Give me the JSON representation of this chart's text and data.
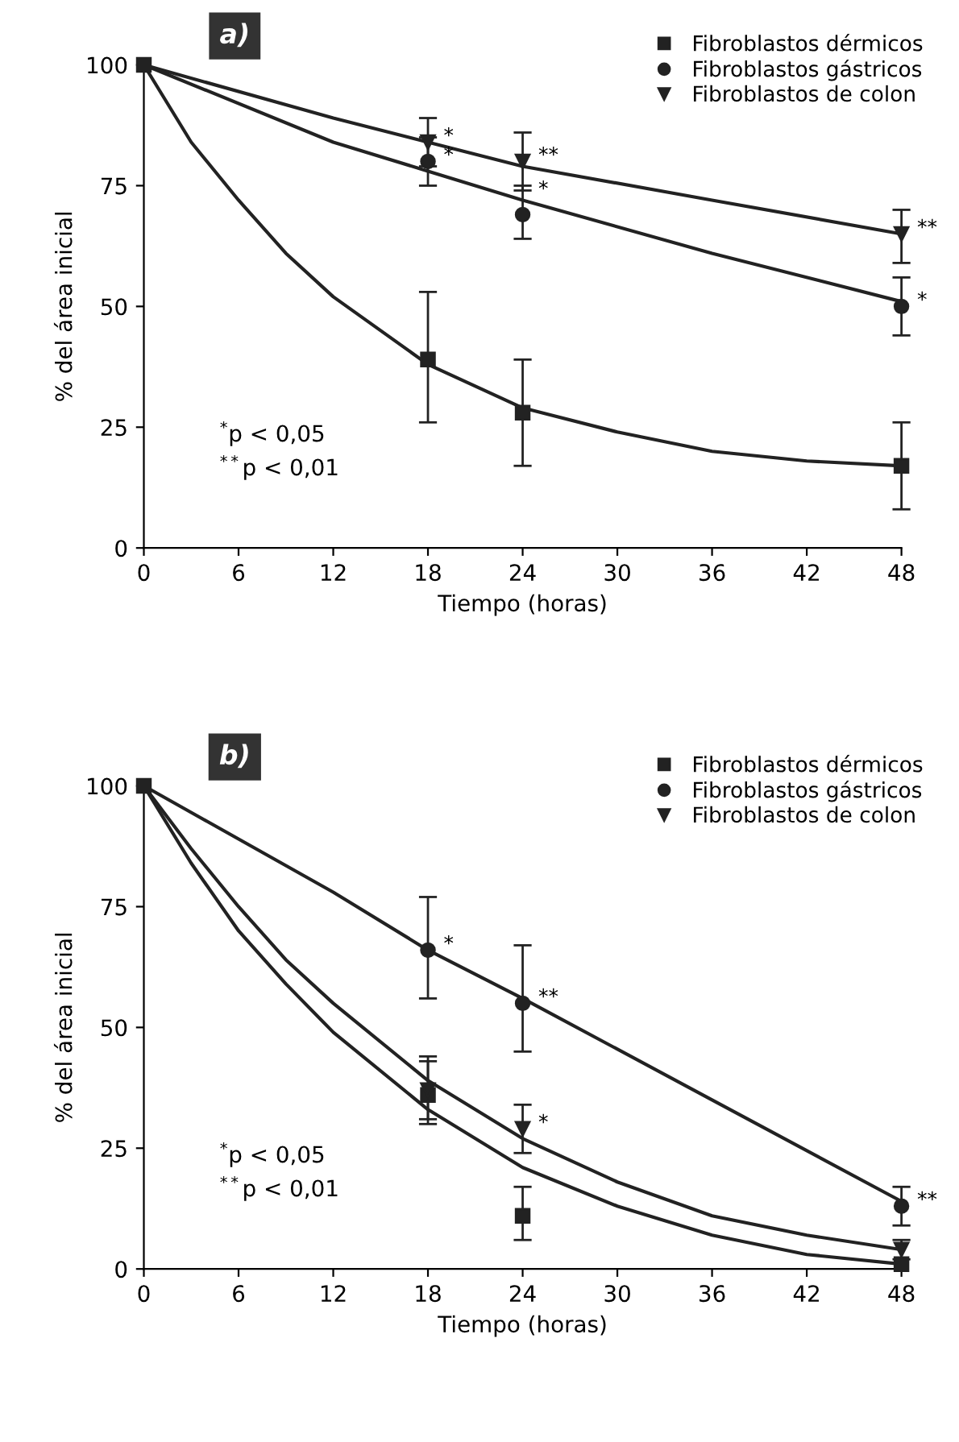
{
  "chart_data": [
    {
      "type": "scatter",
      "title": "a)",
      "xlabel": "Tiempo (horas)",
      "ylabel": "% del área inicial",
      "xlim": [
        0,
        48
      ],
      "ylim": [
        0,
        100
      ],
      "xticks": [
        0,
        6,
        12,
        18,
        24,
        30,
        36,
        42,
        48
      ],
      "yticks": [
        0,
        25,
        50,
        75,
        100
      ],
      "legend": "top right",
      "series": [
        {
          "name": "Fibroblastos dérmicos",
          "color": "#222222",
          "marker": "square",
          "x": [
            0,
            18,
            24,
            48
          ],
          "values": [
            100,
            39,
            28,
            17
          ],
          "errors": [
            null,
            [
              26,
              53
            ],
            [
              17,
              39
            ],
            [
              8,
              26
            ]
          ]
        },
        {
          "name": "Fibroblastos gástricos",
          "color": "#222222",
          "marker": "circle",
          "x": [
            18,
            24,
            48
          ],
          "values": [
            80,
            69,
            50
          ],
          "errors": [
            [
              75,
              85
            ],
            [
              64,
              75
            ],
            [
              44,
              56
            ]
          ]
        },
        {
          "name": "Fibroblastos de colon",
          "color": "#222222",
          "marker": "triangle",
          "x": [
            18,
            24,
            48
          ],
          "values": [
            84,
            80,
            65
          ],
          "errors": [
            [
              79,
              89
            ],
            [
              74,
              86
            ],
            [
              59,
              70
            ]
          ]
        },
        {
          "type": "line",
          "color": "#222222",
          "x": [
            0,
            3,
            6,
            9,
            12,
            18,
            24,
            30,
            36,
            42,
            48
          ],
          "values": [
            100,
            84,
            72,
            61,
            52,
            38,
            29,
            24,
            20,
            18,
            17
          ]
        },
        {
          "type": "line",
          "color": "#222222",
          "x": [
            0,
            12,
            18,
            24,
            36,
            48
          ],
          "values": [
            100,
            84,
            78,
            72,
            61,
            51
          ]
        },
        {
          "type": "line",
          "color": "#222222",
          "x": [
            0,
            12,
            18,
            24,
            36,
            48
          ],
          "values": [
            100,
            89,
            84,
            79,
            72,
            65
          ]
        }
      ],
      "annotations": [
        {
          "text": "*",
          "x": 18,
          "y": 84
        },
        {
          "text": "*",
          "x": 18,
          "y": 80
        },
        {
          "text": "**",
          "x": 24,
          "y": 80
        },
        {
          "text": "*",
          "x": 24,
          "y": 73
        },
        {
          "text": "**",
          "x": 48,
          "y": 65
        },
        {
          "text": "*",
          "x": 48,
          "y": 50
        },
        "$^{*}$p < 0,05",
        "$^{**}$p < 0,01"
      ]
    },
    {
      "type": "scatter",
      "title": "b)",
      "xlabel": "Tiempo (horas)",
      "ylabel": "% del área inicial",
      "xlim": [
        0,
        48
      ],
      "ylim": [
        0,
        100
      ],
      "xticks": [
        0,
        6,
        12,
        18,
        24,
        30,
        36,
        42,
        48
      ],
      "yticks": [
        0,
        25,
        50,
        75,
        100
      ],
      "legend": "top right",
      "series": [
        {
          "name": "Fibroblastos dérmicos",
          "color": "#222222",
          "marker": "square",
          "x": [
            0,
            18,
            24,
            48
          ],
          "values": [
            100,
            36,
            11,
            1
          ],
          "errors": [
            null,
            [
              30,
              43
            ],
            [
              6,
              17
            ],
            null
          ]
        },
        {
          "name": "Fibroblastos gástricos",
          "color": "#222222",
          "marker": "circle",
          "x": [
            18,
            24,
            48
          ],
          "values": [
            66,
            55,
            13
          ],
          "errors": [
            [
              56,
              77
            ],
            [
              45,
              67
            ],
            [
              9,
              17
            ]
          ]
        },
        {
          "name": "Fibroblastos de colon",
          "color": "#222222",
          "marker": "triangle",
          "x": [
            18,
            24,
            48
          ],
          "values": [
            37,
            29,
            4
          ],
          "errors": [
            [
              31,
              44
            ],
            [
              24,
              34
            ],
            [
              2,
              6
            ]
          ]
        },
        {
          "type": "line",
          "color": "#222222",
          "x": [
            0,
            3,
            6,
            9,
            12,
            18,
            24,
            30,
            36,
            42,
            48
          ],
          "values": [
            100,
            84,
            70,
            59,
            49,
            33,
            21,
            13,
            7,
            3,
            1
          ]
        },
        {
          "type": "line",
          "color": "#222222",
          "x": [
            0,
            12,
            18,
            24,
            36,
            48
          ],
          "values": [
            100,
            78,
            66,
            56,
            35,
            14
          ]
        },
        {
          "type": "line",
          "color": "#222222",
          "x": [
            0,
            3,
            6,
            9,
            12,
            18,
            24,
            30,
            36,
            42,
            48
          ],
          "values": [
            100,
            87,
            75,
            64,
            55,
            39,
            27,
            18,
            11,
            7,
            4
          ]
        }
      ],
      "annotations": [
        {
          "text": "*",
          "x": 18,
          "y": 66
        },
        {
          "text": "**",
          "x": 24,
          "y": 55
        },
        {
          "text": "*",
          "x": 24,
          "y": 29
        },
        {
          "text": "**",
          "x": 48,
          "y": 13
        },
        "$^{*}$p < 0,05",
        "$^{**}$p < 0,01"
      ]
    }
  ]
}
